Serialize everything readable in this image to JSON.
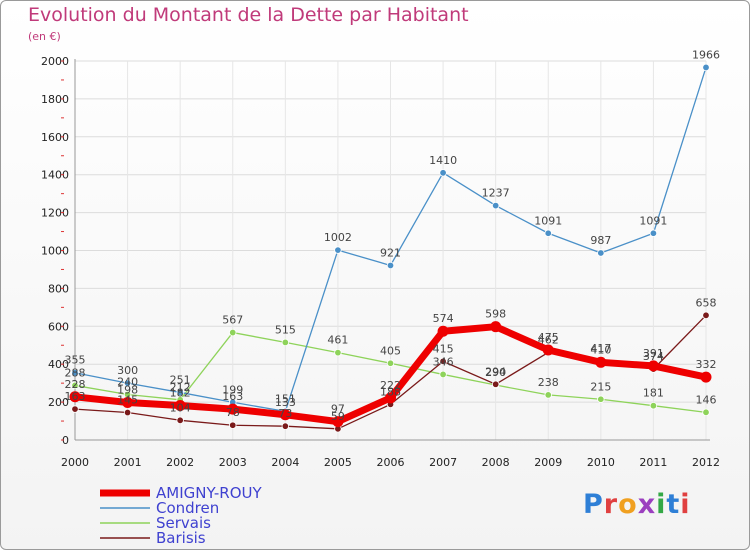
{
  "header": {
    "title": "Evolution du Montant de la Dette par Habitant",
    "subtitle": "(en €)"
  },
  "logo": {
    "text": "Proxiti",
    "letter_colors": [
      "#2e7fd6",
      "#e04040",
      "#f0a020",
      "#9b3fbf",
      "#33a845",
      "#2e7fd6",
      "#e04040"
    ]
  },
  "chart_data": {
    "type": "line",
    "x": [
      "2000",
      "2001",
      "2002",
      "2003",
      "2004",
      "2005",
      "2006",
      "2007",
      "2008",
      "2009",
      "2010",
      "2011",
      "2012"
    ],
    "ylim": [
      0,
      2000
    ],
    "yticks": [
      "0",
      "200",
      "400",
      "600",
      "800",
      "1000",
      "1200",
      "1400",
      "1600",
      "1800",
      "2000"
    ],
    "grid": true,
    "legend_position": "bottom-left",
    "series": [
      {
        "name": "AMIGNY-ROUY",
        "color": "#ee0000",
        "values": [
          228,
          198,
          182,
          163,
          133,
          97,
          222,
          574,
          598,
          475,
          410,
          391,
          332
        ]
      },
      {
        "name": "Condren",
        "color": "#4a90c8",
        "values": [
          355,
          300,
          251,
          199,
          151,
          1002,
          921,
          1410,
          1237,
          1091,
          987,
          1091,
          1966
        ]
      },
      {
        "name": "Servais",
        "color": "#8ed35a",
        "values": [
          288,
          240,
          212,
          567,
          515,
          461,
          405,
          346,
          290,
          238,
          215,
          181,
          146
        ]
      },
      {
        "name": "Barisis",
        "color": "#7a1a1a",
        "values": [
          163,
          145,
          104,
          78,
          73,
          59,
          188,
          415,
          294,
          462,
          417,
          374,
          658
        ]
      }
    ],
    "value_labels": [
      [
        "228",
        "198",
        "182",
        "163",
        "133",
        "97",
        "222",
        "574",
        "598",
        "475",
        "410",
        "391",
        "332"
      ],
      [
        "355",
        "300",
        "251",
        "199",
        "151",
        "1002",
        "921",
        "1410",
        "1237",
        "1091",
        "987",
        "1091",
        "1966"
      ],
      [
        "288",
        "240",
        "212",
        "567",
        "515",
        "461",
        "405",
        "346",
        "290",
        "238",
        "215",
        "181",
        "146"
      ],
      [
        "163",
        "145",
        "104",
        "78",
        "73",
        "59",
        "188",
        "415",
        "294",
        "462",
        "417",
        "374",
        "658"
      ]
    ]
  }
}
